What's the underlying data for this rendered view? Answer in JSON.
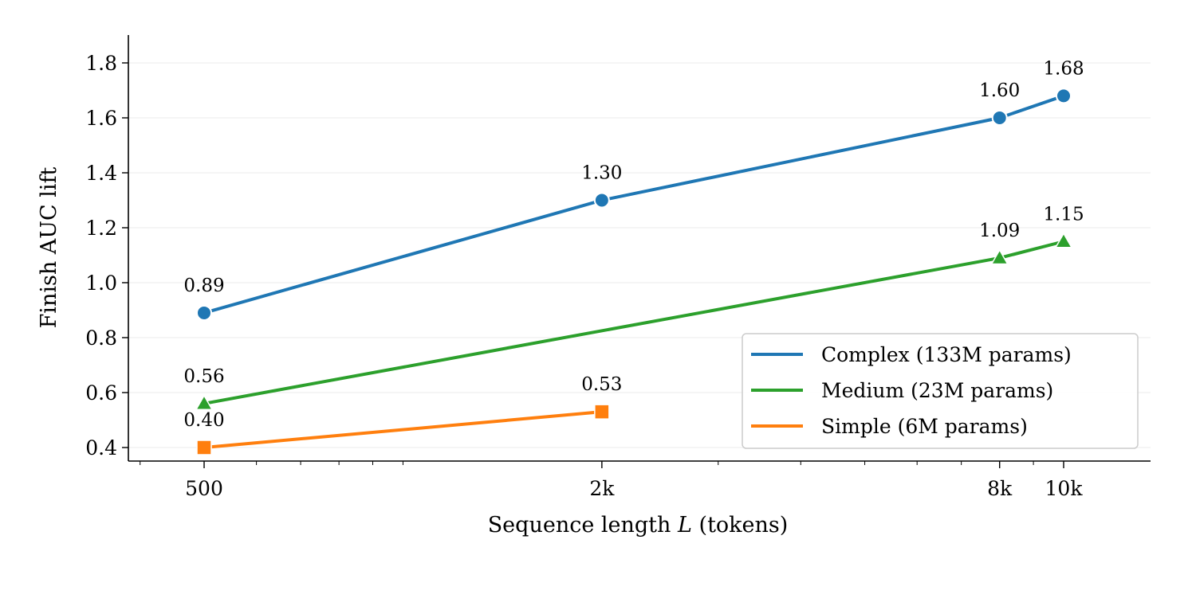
{
  "chart_data": {
    "type": "line",
    "xscale": "log",
    "xlabel": "Sequence length",
    "xlabel_var": "L",
    "xlabel_unit": "(tokens)",
    "ylabel": "Finish AUC lift",
    "ylim": [
      0.35,
      1.9
    ],
    "xlim": [
      420,
      15000
    ],
    "yticks": [
      0.4,
      0.6,
      0.8,
      1.0,
      1.2,
      1.4,
      1.6,
      1.8
    ],
    "ytick_labels": [
      "0.4",
      "0.6",
      "0.8",
      "1.0",
      "1.2",
      "1.4",
      "1.6",
      "1.8"
    ],
    "xticks": [
      500,
      2000,
      8000,
      10000
    ],
    "xtick_labels": [
      "500",
      "2k",
      "8k",
      "10k"
    ],
    "grid": "horizontal",
    "legend_position": "lower-right",
    "series": [
      {
        "name": "Complex (133M params)",
        "color": "#1f77b4",
        "marker": "circle",
        "x": [
          500,
          2000,
          8000,
          10000
        ],
        "y": [
          0.89,
          1.3,
          1.6,
          1.68
        ],
        "labels": [
          "0.89",
          "1.30",
          "1.60",
          "1.68"
        ]
      },
      {
        "name": "Medium (23M params)",
        "color": "#2ca02c",
        "marker": "triangle",
        "x": [
          500,
          8000,
          10000
        ],
        "y": [
          0.56,
          1.09,
          1.15
        ],
        "labels": [
          "0.56",
          "1.09",
          "1.15"
        ]
      },
      {
        "name": "Simple (6M params)",
        "color": "#ff7f0e",
        "marker": "square",
        "x": [
          500,
          2000
        ],
        "y": [
          0.4,
          0.53
        ],
        "labels": [
          "0.40",
          "0.53"
        ]
      }
    ]
  }
}
